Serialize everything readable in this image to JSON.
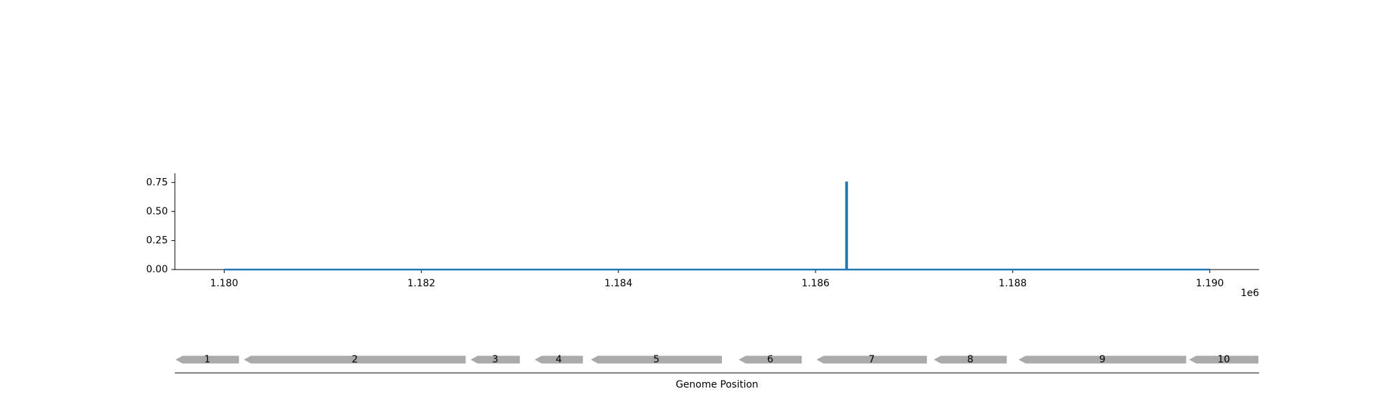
{
  "chart_data": [
    {
      "type": "line",
      "x_offset_label": "1e6",
      "x_ticks": [
        1180000,
        1182000,
        1184000,
        1186000,
        1188000,
        1190000
      ],
      "x_tick_labels": [
        "1.180",
        "1.182",
        "1.184",
        "1.186",
        "1.188",
        "1.190"
      ],
      "xlim": [
        1179500,
        1190500
      ],
      "y_ticks": [
        0.0,
        0.25,
        0.5,
        0.75
      ],
      "y_tick_labels": [
        "0.00",
        "0.25",
        "0.50",
        "0.75"
      ],
      "ylim": [
        0,
        0.83
      ],
      "grid": false,
      "series": [
        {
          "color": "#1f77b4",
          "x": [
            1180000,
            1186310,
            1186310,
            1186320,
            1186320,
            1190000
          ],
          "y": [
            0,
            0,
            0.75,
            0.75,
            0,
            0
          ]
        }
      ]
    },
    {
      "type": "gene_track",
      "xlabel": "Genome Position",
      "xlim": [
        1179500,
        1190500
      ],
      "color": "#aaaaaa",
      "genes": [
        {
          "label": "1",
          "start": 1179500,
          "end": 1180150,
          "strand": "-"
        },
        {
          "label": "2",
          "start": 1180200,
          "end": 1182450,
          "strand": "-"
        },
        {
          "label": "3",
          "start": 1182500,
          "end": 1183000,
          "strand": "-"
        },
        {
          "label": "4",
          "start": 1183150,
          "end": 1183640,
          "strand": "-"
        },
        {
          "label": "5",
          "start": 1183720,
          "end": 1185050,
          "strand": "-"
        },
        {
          "label": "6",
          "start": 1185220,
          "end": 1185860,
          "strand": "-"
        },
        {
          "label": "7",
          "start": 1186010,
          "end": 1187130,
          "strand": "-"
        },
        {
          "label": "8",
          "start": 1187200,
          "end": 1187940,
          "strand": "-"
        },
        {
          "label": "9",
          "start": 1188060,
          "end": 1189760,
          "strand": "-"
        },
        {
          "label": "10",
          "start": 1189790,
          "end": 1190520,
          "strand": "-"
        }
      ]
    }
  ]
}
